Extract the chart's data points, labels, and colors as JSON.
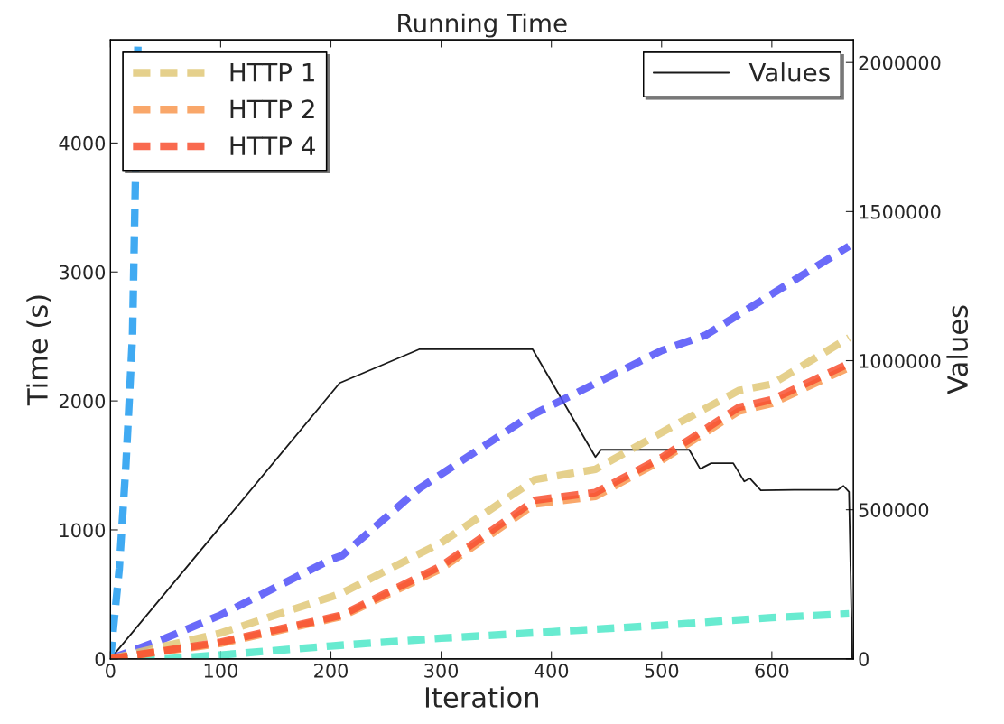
{
  "chart_data": {
    "type": "line",
    "title": "Running Time",
    "xlabel": "Iteration",
    "ylabel": "Time (s)",
    "y2label": "Values",
    "xlim": [
      0,
      674
    ],
    "xticks": [
      0,
      100,
      200,
      300,
      400,
      500,
      600
    ],
    "ylim": [
      0,
      4800
    ],
    "yticks": [
      0,
      1000,
      2000,
      3000,
      4000
    ],
    "y2lim": [
      0,
      2076000
    ],
    "y2ticks": [
      0,
      500000,
      1000000,
      1500000,
      2000000
    ],
    "line_style": "dashed",
    "marker": "none",
    "grid": false,
    "legend": "top left",
    "series": [
      {
        "color": "#5050f8",
        "x": [
          0,
          50,
          100,
          200,
          210,
          280,
          380,
          500,
          540,
          670
        ],
        "values": [
          0,
          160,
          340,
          770,
          800,
          1320,
          1880,
          2390,
          2510,
          3200
        ]
      },
      {
        "color": "#1e9bf0",
        "x": [
          0,
          8,
          14,
          20,
          25
        ],
        "values": [
          0,
          700,
          1500,
          2500,
          4800
        ]
      },
      {
        "color": "#4ee8c8",
        "x": [
          0,
          50,
          100,
          200,
          300,
          400,
          500,
          600,
          670
        ],
        "values": [
          0,
          0,
          30,
          100,
          160,
          210,
          260,
          320,
          350
        ]
      },
      {
        "name": "HTTP 1",
        "color": "#e0c878",
        "x": [
          0,
          100,
          200,
          210,
          300,
          385,
          440,
          520,
          570,
          600,
          670
        ],
        "values": [
          0,
          200,
          480,
          510,
          900,
          1390,
          1470,
          1850,
          2080,
          2130,
          2490
        ]
      },
      {
        "name": "HTTP 2",
        "color": "#f89850",
        "x": [
          0,
          100,
          200,
          210,
          300,
          385,
          440,
          500,
          570,
          600,
          670
        ],
        "values": [
          0,
          120,
          310,
          330,
          700,
          1200,
          1260,
          1540,
          1920,
          1980,
          2260
        ]
      },
      {
        "name": "HTTP 4",
        "color": "#f85030",
        "x": [
          0,
          100,
          200,
          210,
          300,
          385,
          440,
          500,
          570,
          600,
          670
        ],
        "values": [
          0,
          130,
          320,
          340,
          720,
          1230,
          1290,
          1560,
          1950,
          2010,
          2290
        ]
      },
      {
        "name": "Values",
        "color": "#000000",
        "axis": "y2",
        "line_style": "solid",
        "x": [
          0,
          208,
          280,
          383,
          440,
          445,
          525,
          535,
          545,
          565,
          575,
          580,
          590,
          620,
          660,
          665,
          670,
          673
        ],
        "values": [
          0,
          925000,
          1038000,
          1038000,
          677000,
          701000,
          701000,
          637000,
          656000,
          656000,
          595000,
          605000,
          565000,
          567000,
          567000,
          580000,
          560000,
          0
        ]
      }
    ]
  }
}
